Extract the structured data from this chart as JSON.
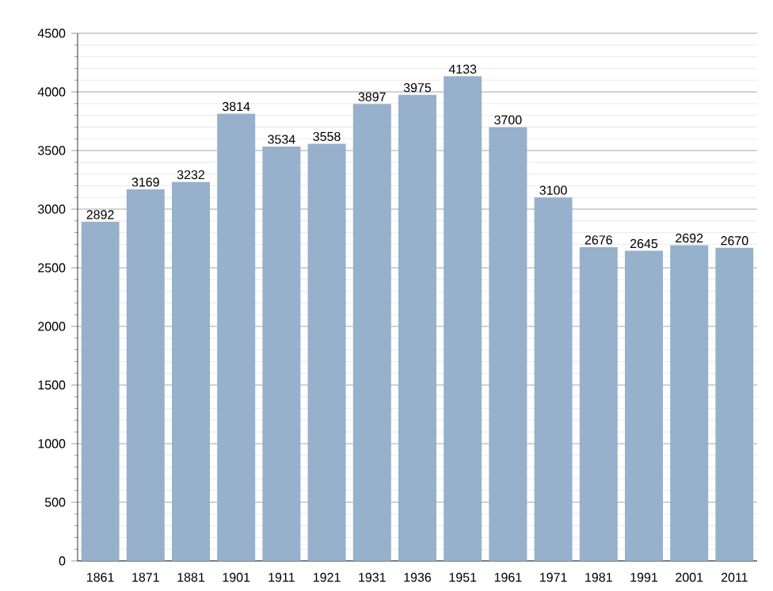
{
  "chart_data": {
    "type": "bar",
    "categories": [
      "1861",
      "1871",
      "1881",
      "1901",
      "1911",
      "1921",
      "1931",
      "1936",
      "1951",
      "1961",
      "1971",
      "1981",
      "1991",
      "2001",
      "2011"
    ],
    "values": [
      2892,
      3169,
      3232,
      3814,
      3534,
      3558,
      3897,
      3975,
      4133,
      3700,
      3100,
      2676,
      2645,
      2692,
      2670
    ],
    "color": "#97b0cc",
    "ylim": [
      0,
      4500
    ],
    "yticks": [
      0,
      500,
      1000,
      1500,
      2000,
      2500,
      3000,
      3500,
      4000,
      4500
    ],
    "grid": "y",
    "data_labels": true
  }
}
